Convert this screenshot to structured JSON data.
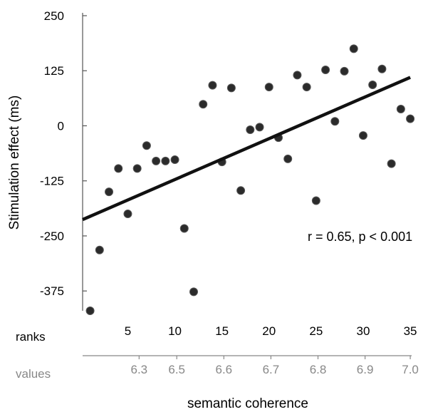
{
  "chart_data": {
    "type": "scatter",
    "ylabel": "Stimulation effect (ms)",
    "xlabel": "semantic coherence",
    "annotation": "r = 0.65, p < 0.001",
    "ylim": [
      -420,
      250
    ],
    "xlim": [
      0.2,
      35.6
    ],
    "yticks": [
      250,
      125,
      0,
      -125,
      -250,
      -375
    ],
    "x_axis_rows": [
      {
        "label": "ranks",
        "ticks": [
          5,
          10,
          15,
          20,
          25,
          30,
          35
        ],
        "tick_labels": [
          "5",
          "10",
          "15",
          "20",
          "25",
          "30",
          "35"
        ]
      },
      {
        "label": "values",
        "ticks": [
          6.2,
          10.2,
          15.2,
          20.2,
          25.2,
          30.2,
          35.0
        ],
        "tick_labels": [
          "6.3",
          "6.5",
          "6.6",
          "6.7",
          "6.8",
          "6.9",
          "7.0"
        ]
      }
    ],
    "points": [
      {
        "x": 1,
        "y": -420
      },
      {
        "x": 2,
        "y": -282
      },
      {
        "x": 3,
        "y": -150
      },
      {
        "x": 4,
        "y": -97
      },
      {
        "x": 5,
        "y": -200
      },
      {
        "x": 6,
        "y": -97
      },
      {
        "x": 7,
        "y": -45
      },
      {
        "x": 8,
        "y": -80
      },
      {
        "x": 9,
        "y": -80
      },
      {
        "x": 10,
        "y": -77
      },
      {
        "x": 11,
        "y": -233
      },
      {
        "x": 12,
        "y": -377
      },
      {
        "x": 13,
        "y": 49
      },
      {
        "x": 14,
        "y": 92
      },
      {
        "x": 15,
        "y": -82
      },
      {
        "x": 16,
        "y": 86
      },
      {
        "x": 17,
        "y": -147
      },
      {
        "x": 18,
        "y": -9
      },
      {
        "x": 19,
        "y": -3
      },
      {
        "x": 20,
        "y": 88
      },
      {
        "x": 21,
        "y": -27
      },
      {
        "x": 22,
        "y": -75
      },
      {
        "x": 23,
        "y": 115
      },
      {
        "x": 24,
        "y": 88
      },
      {
        "x": 25,
        "y": -170
      },
      {
        "x": 26,
        "y": 127
      },
      {
        "x": 27,
        "y": 10
      },
      {
        "x": 28,
        "y": 124
      },
      {
        "x": 29,
        "y": 175
      },
      {
        "x": 30,
        "y": -22
      },
      {
        "x": 31,
        "y": 93
      },
      {
        "x": 32,
        "y": 129
      },
      {
        "x": 33,
        "y": -86
      },
      {
        "x": 34,
        "y": 38
      },
      {
        "x": 35,
        "y": 16
      }
    ],
    "fit_line": {
      "x": [
        0.2,
        35
      ],
      "y": [
        -213,
        110
      ]
    },
    "colors": {
      "points": "#2b2b2b",
      "fit_line": "#111111",
      "axis": "#555555",
      "secondary_text": "#888888"
    }
  }
}
